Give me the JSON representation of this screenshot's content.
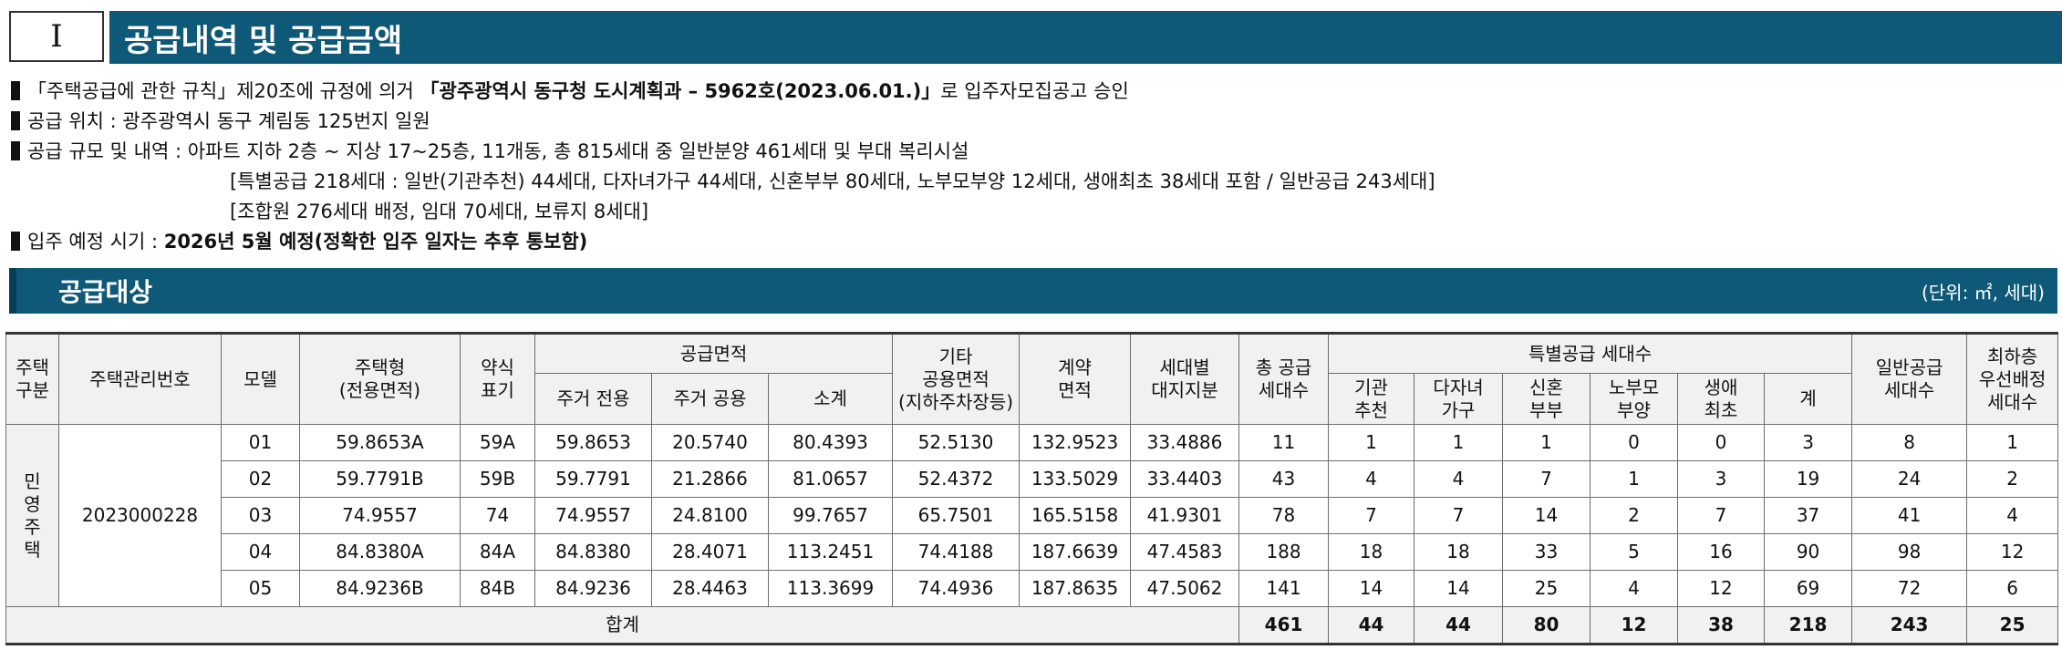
{
  "header": {
    "section_number": "Ⅰ",
    "title": "공급내역 및 공급금액"
  },
  "bullets": {
    "approval": {
      "pre": "「주택공급에 관한 규칙」제20조에 규정에 의거 ",
      "bold": "「광주광역시 동구청 도시계획과 – 5962호(2023.06.01.)」",
      "post": "로 입주자모집공고 승인"
    },
    "location": "공급 위치 : 광주광역시 동구 계림동 125번지 일원",
    "scale": "공급 규모 및 내역 : 아파트 지하 2층 ~ 지상 17~25층, 11개동, 총 815세대 중 일반분양 461세대 및 부대 복리시설",
    "scale_detail_1": "[특별공급 218세대 : 일반(기관추천) 44세대, 다자녀가구 44세대, 신혼부부 80세대, 노부모부양 12세대, 생애최초 38세대 포함 / 일반공급 243세대]",
    "scale_detail_2": "[조합원 276세대 배정, 임대 70세대, 보류지 8세대]",
    "move_in": {
      "pre": "입주 예정 시기 : ",
      "bold": "2026년 5월 예정(정확한 입주 일자는 추후 통보함)"
    }
  },
  "subsection": {
    "title": "공급대상",
    "unit": "(단위: ㎡, 세대)"
  },
  "table": {
    "headers": {
      "housing_type": "주택\n구분",
      "management_no": "주택관리번호",
      "model": "모델",
      "house_type": "주택형\n(전용면적)",
      "abbr": "약식\n표기",
      "supply_area": "공급면적",
      "residential_exclusive": "주거 전용",
      "residential_common": "주거 공용",
      "subtotal": "소계",
      "other_common": "기타\n공용면적\n(지하주차장등)",
      "contract_area": "계약\n면적",
      "land_share": "세대별\n대지지분",
      "total_units": "총 공급\n세대수",
      "special_supply": "특별공급 세대수",
      "institution": "기관\n추천",
      "multi_child": "다자녀\n가구",
      "newlywed": "신혼\n부부",
      "elderly_parent": "노부모\n부양",
      "first_time": "생애\n최초",
      "sum": "계",
      "general_supply": "일반공급\n세대수",
      "lowest_floor": "최하층\n우선배정\n세대수"
    },
    "category": "민\n영\n주\n택",
    "management_no": "2023000228",
    "rows": [
      {
        "model": "01",
        "house_type": "59.8653A",
        "abbr": "59A",
        "excl": "59.8653",
        "common": "20.5740",
        "subtotal": "80.4393",
        "other": "52.5130",
        "contract": "132.9523",
        "land": "33.4886",
        "total": "11",
        "inst": "1",
        "multi": "1",
        "newly": "1",
        "elder": "0",
        "first": "0",
        "sum": "3",
        "general": "8",
        "lowest": "1"
      },
      {
        "model": "02",
        "house_type": "59.7791B",
        "abbr": "59B",
        "excl": "59.7791",
        "common": "21.2866",
        "subtotal": "81.0657",
        "other": "52.4372",
        "contract": "133.5029",
        "land": "33.4403",
        "total": "43",
        "inst": "4",
        "multi": "4",
        "newly": "7",
        "elder": "1",
        "first": "3",
        "sum": "19",
        "general": "24",
        "lowest": "2"
      },
      {
        "model": "03",
        "house_type": "74.9557",
        "abbr": "74",
        "excl": "74.9557",
        "common": "24.8100",
        "subtotal": "99.7657",
        "other": "65.7501",
        "contract": "165.5158",
        "land": "41.9301",
        "total": "78",
        "inst": "7",
        "multi": "7",
        "newly": "14",
        "elder": "2",
        "first": "7",
        "sum": "37",
        "general": "41",
        "lowest": "4"
      },
      {
        "model": "04",
        "house_type": "84.8380A",
        "abbr": "84A",
        "excl": "84.8380",
        "common": "28.4071",
        "subtotal": "113.2451",
        "other": "74.4188",
        "contract": "187.6639",
        "land": "47.4583",
        "total": "188",
        "inst": "18",
        "multi": "18",
        "newly": "33",
        "elder": "5",
        "first": "16",
        "sum": "90",
        "general": "98",
        "lowest": "12"
      },
      {
        "model": "05",
        "house_type": "84.9236B",
        "abbr": "84B",
        "excl": "84.9236",
        "common": "28.4463",
        "subtotal": "113.3699",
        "other": "74.4936",
        "contract": "187.8635",
        "land": "47.5062",
        "total": "141",
        "inst": "14",
        "multi": "14",
        "newly": "25",
        "elder": "4",
        "first": "12",
        "sum": "69",
        "general": "72",
        "lowest": "6"
      }
    ],
    "totals": {
      "label": "합계",
      "total": "461",
      "inst": "44",
      "multi": "44",
      "newly": "80",
      "elder": "12",
      "first": "38",
      "sum": "218",
      "general": "243",
      "lowest": "25"
    }
  }
}
